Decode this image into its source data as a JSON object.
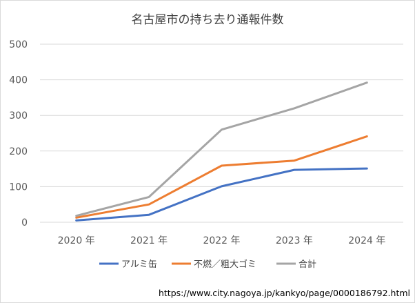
{
  "chart_data": {
    "type": "line",
    "title": "名古屋市の持ち去り通報件数",
    "categories": [
      "2020 年",
      "2021 年",
      "2022 年",
      "2023 年",
      "2024 年"
    ],
    "ylim": [
      0,
      500
    ],
    "yticks": [
      "0",
      "100",
      "200",
      "300",
      "400",
      "500"
    ],
    "grid": true,
    "legend_position": "bottom",
    "series": [
      {
        "name": "アルミ缶",
        "color": "#4472c4",
        "values": [
          5,
          21,
          101,
          147,
          151
        ]
      },
      {
        "name": "不燃／粗大ゴミ",
        "color": "#ed7d31",
        "values": [
          13,
          50,
          159,
          173,
          241
        ]
      },
      {
        "name": "合計",
        "color": "#a5a5a5",
        "values": [
          18,
          71,
          260,
          320,
          392
        ]
      }
    ]
  },
  "source_url": "https://www.city.nagoya.jp/kankyo/page/0000186792.html"
}
